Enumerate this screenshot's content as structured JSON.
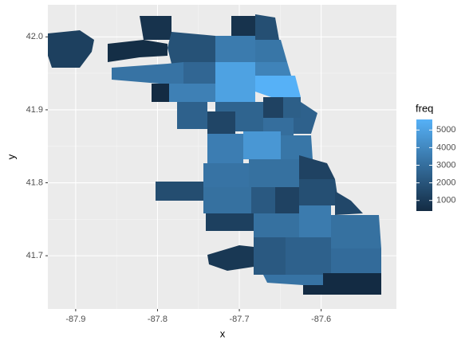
{
  "chart_data": {
    "type": "choropleth",
    "xlabel": "x",
    "ylabel": "y",
    "xlim": [
      -87.934,
      -87.508
    ],
    "xticks": [
      -87.9,
      -87.8,
      -87.7,
      -87.6
    ],
    "ylim": [
      41.627,
      42.044
    ],
    "yticks": [
      {
        "value": 42.0,
        "label": "42.0"
      },
      41.9,
      41.8,
      41.7
    ],
    "grid": true,
    "legend": {
      "title": "freq",
      "ticks": [
        1000,
        2000,
        3000,
        4000,
        5000
      ],
      "low": "#132B43",
      "high": "#56B1F7",
      "position": "right"
    },
    "values": [
      1200,
      500,
      700,
      1900,
      700,
      1800,
      3500,
      3300,
      3200,
      2700,
      5000,
      3800,
      5600,
      400,
      3700,
      2500,
      1400,
      2600,
      1300,
      2400,
      2500,
      3000,
      3600,
      4600,
      3300,
      1300,
      3200,
      3100,
      1700,
      3100,
      2200,
      1300,
      1800,
      1500,
      1200,
      3100,
      3500,
      3100,
      2200,
      2500,
      2900,
      900,
      3200,
      400
    ]
  }
}
